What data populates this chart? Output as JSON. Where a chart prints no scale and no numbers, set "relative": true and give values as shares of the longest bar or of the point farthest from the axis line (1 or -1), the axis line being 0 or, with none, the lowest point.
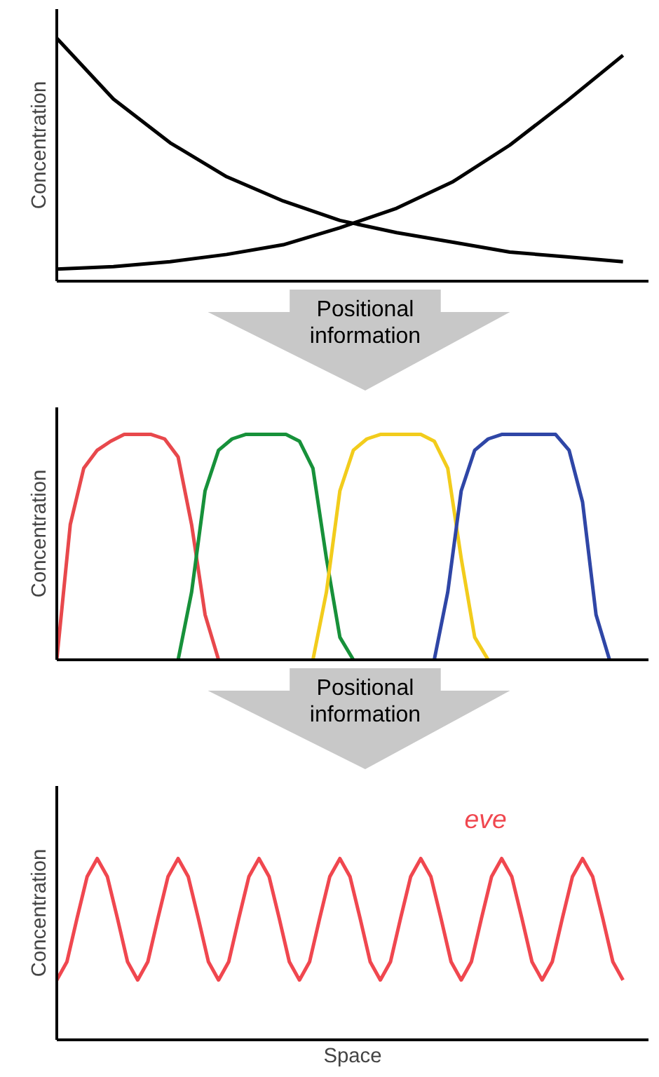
{
  "chart_data": [
    {
      "type": "line",
      "relative": true,
      "ylabel": "Concentration",
      "categories": [
        null,
        null,
        null,
        null,
        null,
        null,
        null,
        null,
        null,
        null,
        null
      ],
      "series": [
        {
          "color": "#000000",
          "values": [
            1,
            0.75,
            0.57,
            0.43,
            0.33,
            0.25,
            0.2,
            0.16,
            0.12,
            0.1,
            0.08
          ]
        },
        {
          "color": "#000000",
          "values": [
            0.05,
            0.06,
            0.08,
            0.11,
            0.15,
            0.22,
            0.3,
            0.41,
            0.56,
            0.74,
            0.93
          ]
        }
      ]
    },
    {
      "type": "line",
      "relative": true,
      "ylabel": "Concentration",
      "annotations": [
        "Positional information"
      ],
      "categories": [
        null,
        null,
        null,
        null,
        null,
        null,
        null,
        null,
        null,
        null,
        null,
        null,
        null,
        null,
        null,
        null,
        null,
        null,
        null,
        null,
        null,
        null,
        null,
        null,
        null,
        null,
        null,
        null,
        null,
        null,
        null,
        null,
        null,
        null,
        null,
        null,
        null,
        null,
        null,
        null,
        null,
        null,
        null
      ],
      "series": [
        {
          "color": "#e8484c",
          "values": [
            0,
            0.6,
            0.85,
            0.93,
            0.97,
            1,
            1,
            1,
            0.98,
            0.9,
            0.6,
            0.2,
            0,
            null,
            null,
            null,
            null,
            null,
            null,
            null,
            null,
            null,
            null,
            null,
            null,
            null,
            null,
            null,
            null,
            null,
            null,
            null,
            null,
            null,
            null,
            null,
            null,
            null,
            null,
            null,
            null,
            null,
            null
          ]
        },
        {
          "color": "#17913a",
          "values": [
            null,
            null,
            null,
            null,
            null,
            null,
            null,
            null,
            null,
            0,
            0.3,
            0.75,
            0.93,
            0.98,
            1,
            1,
            1,
            1,
            0.97,
            0.85,
            0.45,
            0.1,
            0,
            null,
            null,
            null,
            null,
            null,
            null,
            null,
            null,
            null,
            null,
            null,
            null,
            null,
            null,
            null,
            null,
            null,
            null,
            null,
            null
          ]
        },
        {
          "color": "#f2cc1c",
          "values": [
            null,
            null,
            null,
            null,
            null,
            null,
            null,
            null,
            null,
            null,
            null,
            null,
            null,
            null,
            null,
            null,
            null,
            null,
            null,
            0,
            0.3,
            0.75,
            0.93,
            0.98,
            1,
            1,
            1,
            1,
            0.97,
            0.85,
            0.45,
            0.1,
            0,
            null,
            null,
            null,
            null,
            null,
            null,
            null,
            null,
            null,
            null
          ]
        },
        {
          "color": "#2f46a6",
          "values": [
            null,
            null,
            null,
            null,
            null,
            null,
            null,
            null,
            null,
            null,
            null,
            null,
            null,
            null,
            null,
            null,
            null,
            null,
            null,
            null,
            null,
            null,
            null,
            null,
            null,
            null,
            null,
            null,
            0,
            0.3,
            0.75,
            0.93,
            0.98,
            1,
            1,
            1,
            1,
            1,
            0.93,
            0.7,
            0.2,
            0,
            null
          ]
        }
      ]
    },
    {
      "type": "line",
      "relative": true,
      "ylabel": "Concentration",
      "xlabel": "Space",
      "annotations": [
        "Positional information"
      ],
      "categories": [
        null,
        null,
        null,
        null,
        null,
        null,
        null,
        null,
        null,
        null,
        null,
        null,
        null,
        null,
        null,
        null,
        null,
        null,
        null,
        null,
        null,
        null,
        null,
        null,
        null,
        null,
        null,
        null,
        null,
        null,
        null,
        null,
        null,
        null,
        null,
        null,
        null,
        null,
        null,
        null,
        null,
        null,
        null,
        null,
        null,
        null,
        null,
        null,
        null,
        null,
        null,
        null,
        null,
        null,
        null,
        null,
        null
      ],
      "series": [
        {
          "name": "eve",
          "color": "#f0474f",
          "values": [
            0.33,
            0.43,
            0.67,
            0.9,
            1,
            0.9,
            0.67,
            0.43,
            0.33,
            0.43,
            0.67,
            0.9,
            1,
            0.9,
            0.67,
            0.43,
            0.33,
            0.43,
            0.67,
            0.9,
            1,
            0.9,
            0.67,
            0.43,
            0.33,
            0.43,
            0.67,
            0.9,
            1,
            0.9,
            0.67,
            0.43,
            0.33,
            0.43,
            0.67,
            0.9,
            1,
            0.9,
            0.67,
            0.43,
            0.33,
            0.43,
            0.67,
            0.9,
            1,
            0.9,
            0.67,
            0.43,
            0.33,
            0.43,
            0.67,
            0.9,
            1,
            0.9,
            0.67,
            0.43,
            0.33
          ]
        }
      ]
    }
  ]
}
